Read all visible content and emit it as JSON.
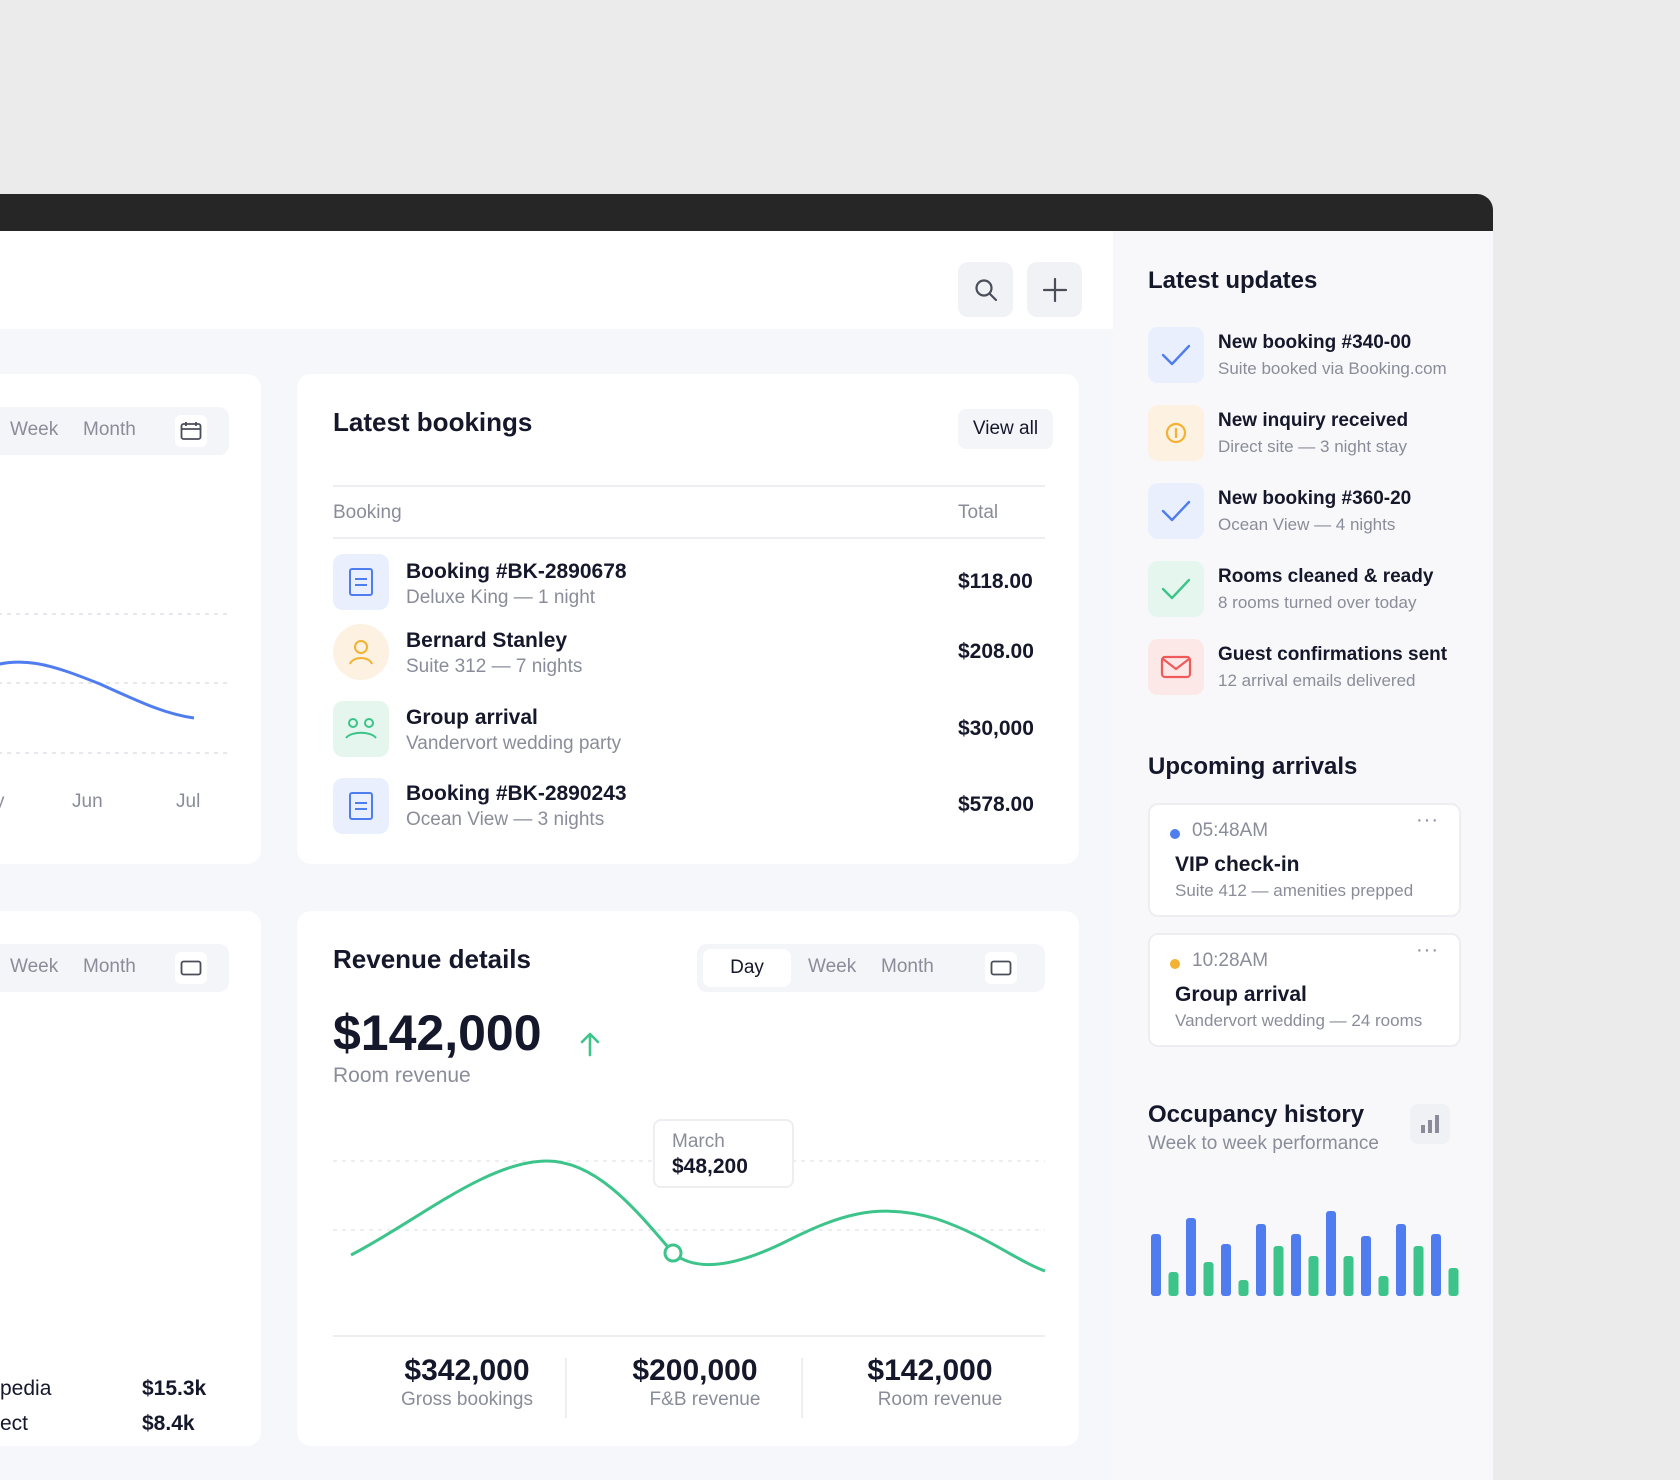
{
  "topbar": {
    "search_icon": "search-icon",
    "add_icon": "plus-icon"
  },
  "left_card_top": {
    "tabs": [
      "Week",
      "Month"
    ],
    "calendar_icon": "calendar-icon",
    "x_labels": [
      "y",
      "Jun",
      "Jul"
    ]
  },
  "left_card_bottom": {
    "tabs": [
      "Week",
      "Month"
    ],
    "channels": [
      {
        "name": "pedia",
        "value": "$15.3k"
      },
      {
        "name": "ect",
        "value": "$8.4k"
      }
    ]
  },
  "bookings": {
    "title": "Latest bookings",
    "view_all": "View all",
    "col_booking": "Booking",
    "col_total": "Total",
    "rows": [
      {
        "title": "Booking #BK-2890678",
        "sub": "Deluxe King — 1 night",
        "total": "$118.00",
        "icon": "document-icon"
      },
      {
        "title": "Bernard Stanley",
        "sub": "Suite 312 — 7 nights",
        "total": "$208.00",
        "icon": "user-icon"
      },
      {
        "title": "Group arrival",
        "sub": "Vandervort wedding party",
        "total": "$30,000",
        "icon": "group-icon"
      },
      {
        "title": "Booking #BK-2890243",
        "sub": "Ocean View — 3 nights",
        "total": "$578.00",
        "icon": "document-icon"
      }
    ]
  },
  "revenue": {
    "title": "Revenue details",
    "tabs": [
      "Day",
      "Week",
      "Month"
    ],
    "amount": "$142,000",
    "amount_label": "Room revenue",
    "tooltip_month": "March",
    "tooltip_value": "$48,200",
    "stats": [
      {
        "value": "$342,000",
        "label": "Gross bookings"
      },
      {
        "value": "$200,000",
        "label": "F&B revenue"
      },
      {
        "value": "$142,000",
        "label": "Room revenue"
      }
    ]
  },
  "updates": {
    "title": "Latest updates",
    "items": [
      {
        "title": "New booking #340-00",
        "sub": "Suite booked via Booking.com",
        "icon": "check-icon",
        "color": "#4f7df0"
      },
      {
        "title": "New inquiry received",
        "sub": "Direct site — 3 night stay",
        "icon": "info-icon",
        "color": "#f2b233"
      },
      {
        "title": "New booking #360-20",
        "sub": "Ocean View — 4 nights",
        "icon": "check-icon",
        "color": "#4f7df0"
      },
      {
        "title": "Rooms cleaned & ready",
        "sub": "8 rooms turned over today",
        "icon": "check-icon",
        "color": "#3cc48a"
      },
      {
        "title": "Guest confirmations sent",
        "sub": "12 arrival emails delivered",
        "icon": "mail-icon",
        "color": "#ef5a5a"
      }
    ]
  },
  "arrivals": {
    "title": "Upcoming arrivals",
    "items": [
      {
        "time": "05:48AM",
        "title": "VIP check-in",
        "sub": "Suite 412 — amenities prepped",
        "dot_color": "#4f7df0"
      },
      {
        "time": "10:28AM",
        "title": "Group arrival",
        "sub": "Vandervort wedding — 24 rooms",
        "dot_color": "#f2b233"
      }
    ]
  },
  "occupancy": {
    "title": "Occupancy history",
    "subtitle": "Week to week performance",
    "icon": "bar-chart-icon"
  },
  "colors": {
    "accent_blue": "#4f7df0",
    "accent_green": "#3cc48a",
    "accent_orange": "#f2b233",
    "accent_red": "#ef5a5a"
  }
}
